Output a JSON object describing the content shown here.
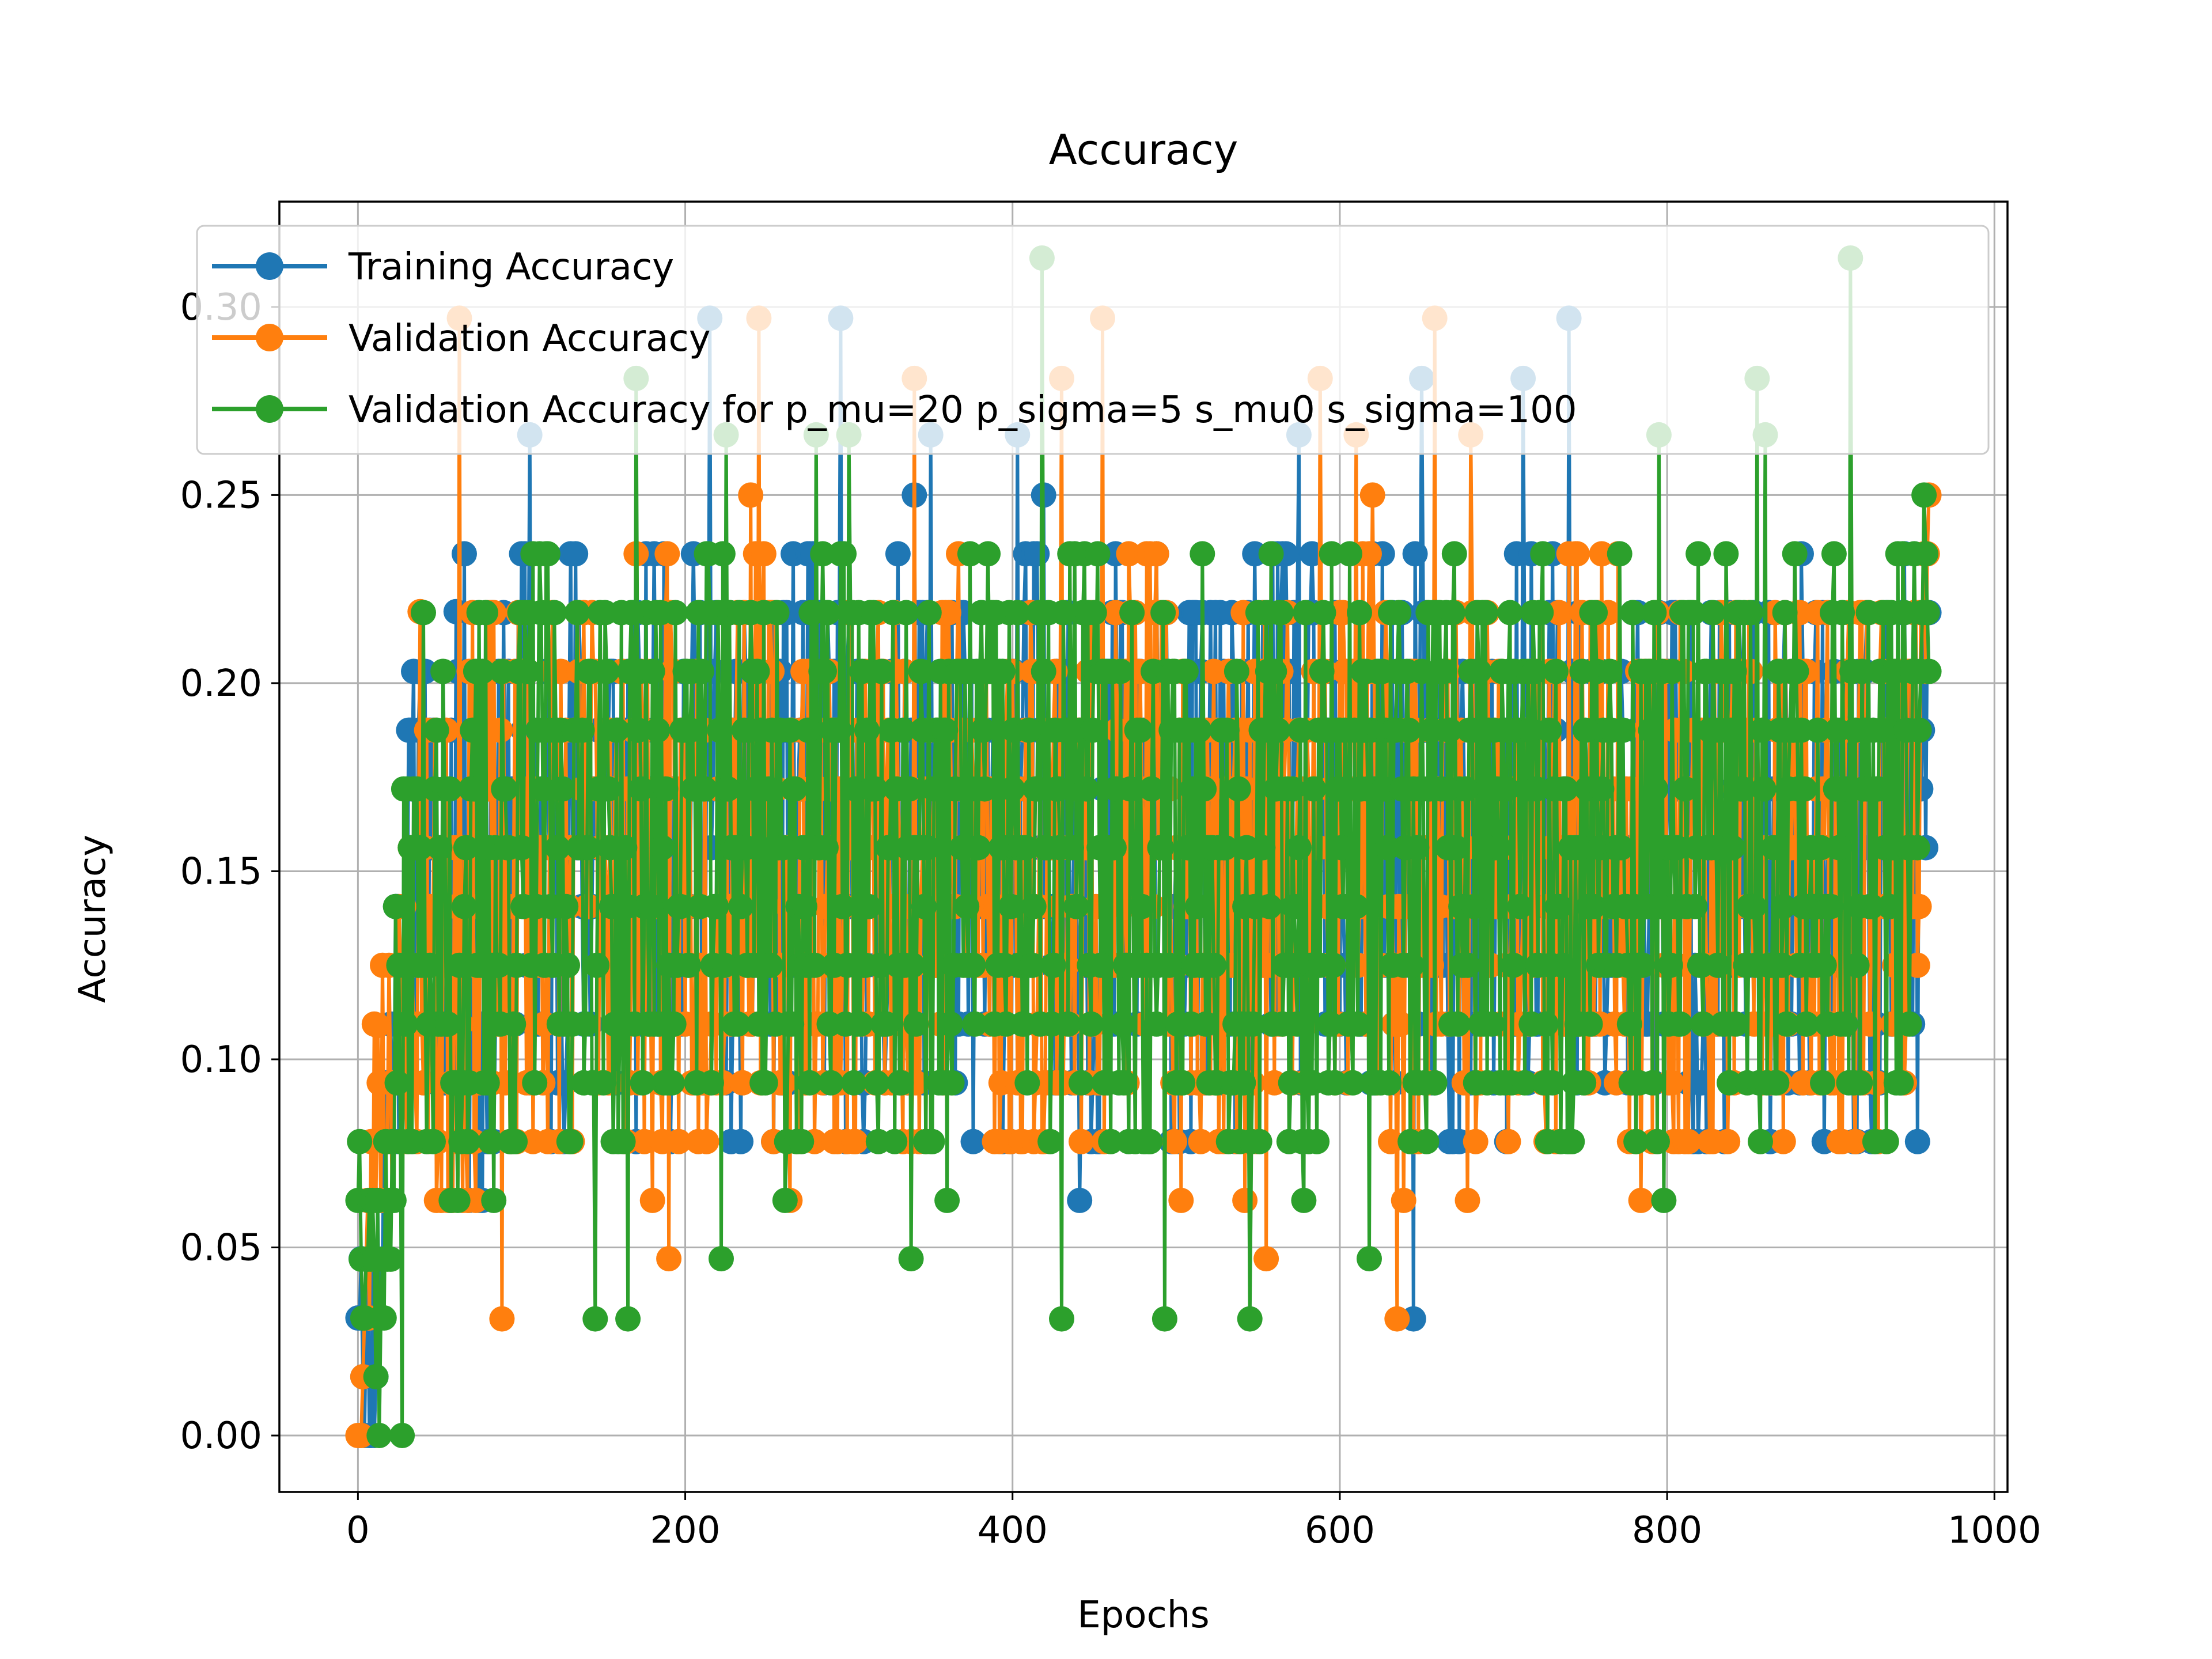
{
  "chart_data": {
    "type": "line",
    "title": "Accuracy",
    "xlabel": "Epochs",
    "ylabel": "Accuracy",
    "xlim": [
      -48,
      1008
    ],
    "ylim": [
      -0.015,
      0.328
    ],
    "xticks": [
      0,
      200,
      400,
      600,
      800,
      1000
    ],
    "yticks": [
      0.0,
      0.05,
      0.1,
      0.15,
      0.2,
      0.25,
      0.3
    ],
    "grid": true,
    "legend_position": "top-left",
    "marker": "circle",
    "x_range": [
      0,
      960
    ],
    "series": [
      {
        "name": "Training Accuracy",
        "color": "#1f77b4",
        "seed": 11,
        "outliers": [
          [
            215,
            0.297
          ],
          [
            295,
            0.297
          ],
          [
            740,
            0.297
          ],
          [
            650,
            0.281
          ],
          [
            712,
            0.281
          ],
          [
            105,
            0.266
          ],
          [
            350,
            0.266
          ],
          [
            403,
            0.266
          ],
          [
            575,
            0.266
          ],
          [
            60,
            0.219
          ],
          [
            38,
            0.203
          ],
          [
            645,
            0.031
          ],
          [
            8,
            0.0
          ],
          [
            2,
            0.047
          ]
        ],
        "x": [
          0,
          5,
          10,
          15,
          20,
          25,
          30,
          35,
          40,
          45,
          50,
          55,
          60,
          65,
          70,
          75,
          80,
          85,
          90,
          95,
          100,
          110,
          120,
          130,
          140,
          150,
          160,
          170,
          180,
          190,
          200,
          220,
          240,
          260,
          280,
          300,
          320,
          340,
          360,
          380,
          400,
          420,
          440,
          460,
          480,
          500,
          520,
          540,
          560,
          580,
          600,
          620,
          640,
          660,
          680,
          700,
          720,
          740,
          760,
          780,
          800,
          820,
          840,
          860,
          880,
          900,
          920,
          940,
          960
        ],
        "y": [
          0.047,
          0.016,
          0.031,
          0.063,
          0.094,
          0.125,
          0.141,
          0.156,
          0.172,
          0.125,
          0.141,
          0.109,
          0.188,
          0.156,
          0.125,
          0.109,
          0.141,
          0.156,
          0.141,
          0.156,
          0.172,
          0.156,
          0.141,
          0.172,
          0.156,
          0.172,
          0.156,
          0.141,
          0.172,
          0.156,
          0.172,
          0.156,
          0.141,
          0.156,
          0.172,
          0.141,
          0.156,
          0.172,
          0.156,
          0.141,
          0.156,
          0.172,
          0.141,
          0.156,
          0.172,
          0.141,
          0.156,
          0.141,
          0.172,
          0.156,
          0.141,
          0.156,
          0.172,
          0.141,
          0.156,
          0.141,
          0.172,
          0.156,
          0.141,
          0.156,
          0.172,
          0.141,
          0.156,
          0.141,
          0.172,
          0.156,
          0.141,
          0.156,
          0.156
        ]
      },
      {
        "name": "Validation Accuracy",
        "color": "#ff7f0e",
        "seed": 23,
        "outliers": [
          [
            62,
            0.297
          ],
          [
            245,
            0.297
          ],
          [
            658,
            0.297
          ],
          [
            455,
            0.297
          ],
          [
            340,
            0.281
          ],
          [
            430,
            0.281
          ],
          [
            588,
            0.281
          ],
          [
            610,
            0.266
          ],
          [
            680,
            0.266
          ],
          [
            38,
            0.219
          ],
          [
            12,
            0.109
          ],
          [
            190,
            0.047
          ],
          [
            555,
            0.047
          ],
          [
            635,
            0.031
          ],
          [
            1,
            0.0
          ],
          [
            88,
            0.031
          ]
        ],
        "x": [
          0,
          5,
          10,
          15,
          20,
          25,
          30,
          35,
          40,
          45,
          50,
          55,
          60,
          65,
          70,
          75,
          80,
          85,
          90,
          95,
          100,
          110,
          120,
          130,
          140,
          150,
          160,
          170,
          180,
          190,
          200,
          220,
          240,
          260,
          280,
          300,
          320,
          340,
          360,
          380,
          400,
          420,
          440,
          460,
          480,
          500,
          520,
          540,
          560,
          580,
          600,
          620,
          640,
          660,
          680,
          700,
          720,
          740,
          760,
          780,
          800,
          820,
          840,
          860,
          880,
          900,
          920,
          940,
          960
        ],
        "y": [
          0.0,
          0.031,
          0.078,
          0.094,
          0.109,
          0.094,
          0.125,
          0.109,
          0.141,
          0.125,
          0.109,
          0.125,
          0.141,
          0.125,
          0.141,
          0.125,
          0.156,
          0.141,
          0.125,
          0.141,
          0.156,
          0.141,
          0.156,
          0.141,
          0.156,
          0.172,
          0.141,
          0.156,
          0.141,
          0.156,
          0.141,
          0.156,
          0.172,
          0.141,
          0.156,
          0.141,
          0.156,
          0.141,
          0.172,
          0.156,
          0.141,
          0.156,
          0.141,
          0.156,
          0.172,
          0.141,
          0.156,
          0.141,
          0.156,
          0.141,
          0.156,
          0.172,
          0.141,
          0.156,
          0.141,
          0.156,
          0.141,
          0.156,
          0.172,
          0.141,
          0.156,
          0.141,
          0.156,
          0.141,
          0.156,
          0.141,
          0.156,
          0.141,
          0.203
        ]
      },
      {
        "name": "Validation Accuracy for p_mu=20 p_sigma=5 s_mu0 s_sigma=100",
        "color": "#2ca02c",
        "seed": 37,
        "outliers": [
          [
            418,
            0.313
          ],
          [
            912,
            0.313
          ],
          [
            170,
            0.281
          ],
          [
            855,
            0.281
          ],
          [
            280,
            0.266
          ],
          [
            300,
            0.266
          ],
          [
            225,
            0.266
          ],
          [
            795,
            0.266
          ],
          [
            860,
            0.266
          ],
          [
            27,
            0.0
          ],
          [
            430,
            0.031
          ],
          [
            493,
            0.031
          ],
          [
            545,
            0.031
          ],
          [
            145,
            0.031
          ],
          [
            165,
            0.031
          ],
          [
            618,
            0.047
          ],
          [
            222,
            0.047
          ],
          [
            338,
            0.047
          ]
        ],
        "x": [
          0,
          5,
          10,
          15,
          20,
          25,
          30,
          35,
          40,
          45,
          50,
          55,
          60,
          65,
          70,
          75,
          80,
          85,
          90,
          95,
          100,
          110,
          120,
          130,
          140,
          150,
          160,
          170,
          180,
          190,
          200,
          220,
          240,
          260,
          280,
          300,
          320,
          340,
          360,
          380,
          400,
          420,
          440,
          460,
          480,
          500,
          520,
          540,
          560,
          580,
          600,
          620,
          640,
          660,
          680,
          700,
          720,
          740,
          760,
          780,
          800,
          820,
          840,
          860,
          880,
          900,
          920,
          940,
          960
        ],
        "y": [
          0.078,
          0.063,
          0.047,
          0.031,
          0.078,
          0.109,
          0.125,
          0.141,
          0.156,
          0.125,
          0.141,
          0.125,
          0.109,
          0.141,
          0.125,
          0.156,
          0.141,
          0.125,
          0.156,
          0.141,
          0.156,
          0.172,
          0.156,
          0.141,
          0.172,
          0.156,
          0.141,
          0.172,
          0.156,
          0.141,
          0.172,
          0.156,
          0.172,
          0.141,
          0.156,
          0.172,
          0.141,
          0.156,
          0.141,
          0.172,
          0.156,
          0.141,
          0.172,
          0.156,
          0.141,
          0.156,
          0.172,
          0.141,
          0.156,
          0.141,
          0.172,
          0.156,
          0.141,
          0.156,
          0.172,
          0.141,
          0.156,
          0.141,
          0.172,
          0.156,
          0.141,
          0.172,
          0.156,
          0.141,
          0.156,
          0.172,
          0.141,
          0.156,
          0.188
        ]
      }
    ]
  }
}
